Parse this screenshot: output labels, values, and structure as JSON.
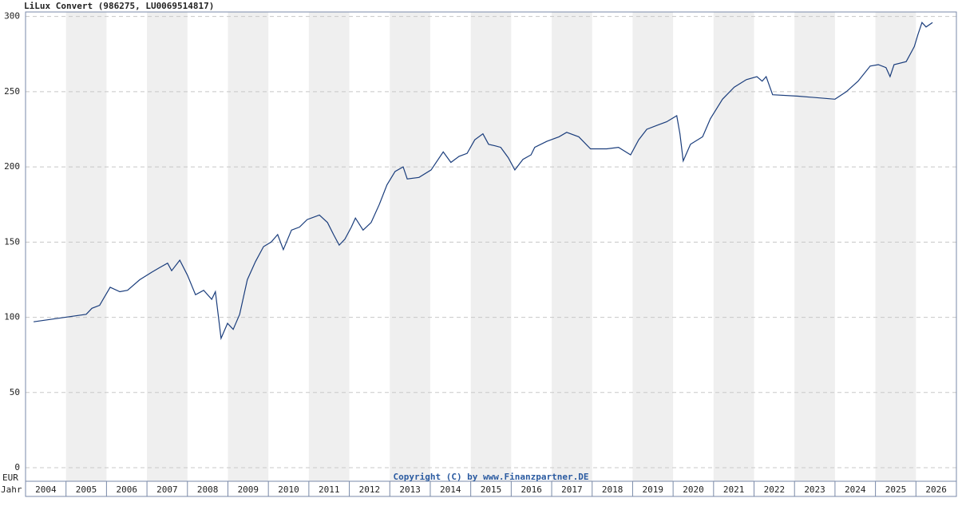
{
  "chart_data": {
    "type": "line",
    "title": "LiLux Convert (986275, LU0069514817)",
    "y_unit_label": "EUR",
    "x_axis_label": "Jahr",
    "copyright": "Copyright (C) by www.Finanzpartner.DE",
    "xlim": [
      2004,
      2027
    ],
    "xticks": [
      {
        "value": 2004,
        "label": "2004"
      },
      {
        "value": 2005,
        "label": "2005"
      },
      {
        "value": 2006,
        "label": "2006"
      },
      {
        "value": 2007,
        "label": "2007"
      },
      {
        "value": 2008,
        "label": "2008"
      },
      {
        "value": 2009,
        "label": "2009"
      },
      {
        "value": 2010,
        "label": "2010"
      },
      {
        "value": 2011,
        "label": "2011"
      },
      {
        "value": 2012,
        "label": "2012"
      },
      {
        "value": 2013,
        "label": "2013"
      },
      {
        "value": 2014,
        "label": "2014"
      },
      {
        "value": 2015,
        "label": "2015"
      },
      {
        "value": 2016,
        "label": "2016"
      },
      {
        "value": 2017,
        "label": "2017"
      },
      {
        "value": 2018,
        "label": "2018"
      },
      {
        "value": 2019,
        "label": "2019"
      },
      {
        "value": 2020,
        "label": "2020"
      },
      {
        "value": 2021,
        "label": "2021"
      },
      {
        "value": 2022,
        "label": "2022"
      },
      {
        "value": 2023,
        "label": "2023"
      },
      {
        "value": 2024,
        "label": "2024"
      },
      {
        "value": 2025,
        "label": "2025"
      },
      {
        "value": 2026,
        "label": "2026"
      }
    ],
    "ylim": [
      -9,
      303
    ],
    "yticks": [
      0,
      50,
      100,
      150,
      200,
      250,
      300
    ],
    "grid": true,
    "color": "#1a3d7c",
    "x": [
      2004.2,
      2005.5,
      2005.64,
      2005.83,
      2006.09,
      2006.33,
      2006.52,
      2006.82,
      2007.12,
      2007.31,
      2007.51,
      2007.61,
      2007.81,
      2008.0,
      2008.2,
      2008.4,
      2008.6,
      2008.69,
      2008.83,
      2008.99,
      2009.13,
      2009.29,
      2009.48,
      2009.68,
      2009.88,
      2010.07,
      2010.23,
      2010.37,
      2010.57,
      2010.77,
      2010.96,
      2011.26,
      2011.46,
      2011.61,
      2011.75,
      2011.89,
      2012.05,
      2012.15,
      2012.34,
      2012.54,
      2012.74,
      2012.93,
      2013.13,
      2013.33,
      2013.43,
      2013.72,
      2014.02,
      2014.32,
      2014.51,
      2014.71,
      2014.91,
      2015.1,
      2015.3,
      2015.44,
      2015.6,
      2015.74,
      2015.93,
      2016.09,
      2016.29,
      2016.49,
      2016.58,
      2016.88,
      2017.18,
      2017.37,
      2017.67,
      2017.96,
      2018.36,
      2018.65,
      2018.95,
      2019.15,
      2019.35,
      2019.64,
      2019.84,
      2020.09,
      2020.17,
      2020.25,
      2020.43,
      2020.73,
      2020.92,
      2021.22,
      2021.51,
      2021.81,
      2022.07,
      2022.2,
      2022.3,
      2022.46,
      2023.09,
      2024.0,
      2024.28,
      2024.57,
      2024.87,
      2025.07,
      2025.26,
      2025.36,
      2025.46,
      2025.76,
      2025.96,
      2026.05,
      2026.15,
      2026.25,
      2026.41
    ],
    "values": [
      97,
      102,
      106,
      108,
      120,
      117,
      118,
      125,
      130,
      133,
      136,
      131,
      138,
      128,
      115,
      118,
      112,
      117,
      86,
      96,
      92,
      102,
      125,
      137,
      147,
      150,
      155,
      145,
      158,
      160,
      165,
      168,
      163,
      155,
      148,
      152,
      160,
      166,
      158,
      163,
      175,
      188,
      197,
      200,
      192,
      193,
      198,
      210,
      203,
      207,
      209,
      218,
      222,
      215,
      214,
      213,
      206,
      198,
      205,
      208,
      213,
      217,
      220,
      223,
      220,
      212,
      212,
      213,
      208,
      218,
      225,
      228,
      230,
      234,
      222,
      204,
      215,
      220,
      232,
      245,
      253,
      258,
      260,
      257,
      260,
      248,
      247,
      245,
      250,
      257,
      267,
      268,
      266,
      260,
      268,
      270,
      280,
      288,
      296,
      293,
      296
    ]
  }
}
